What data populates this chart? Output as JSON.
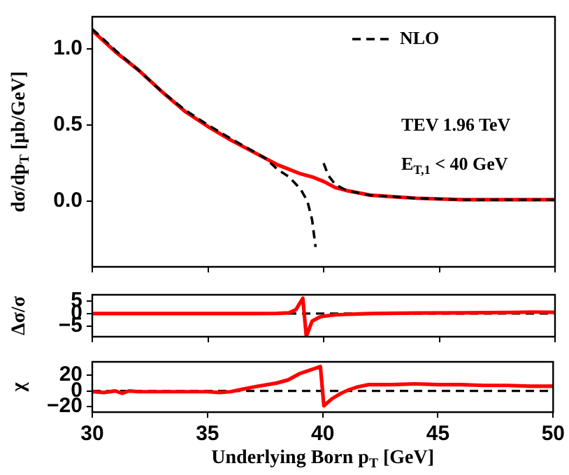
{
  "chart_data": [
    {
      "type": "line",
      "ylabel": "dσ/dp$_{T}$ [μb/GeV]",
      "xlim": [
        30,
        50
      ],
      "xticks": [
        30,
        35,
        40,
        45,
        50
      ],
      "ylim": [
        -0.43,
        1.21
      ],
      "yticks": [
        {
          "value": 0,
          "label": "0.0"
        },
        {
          "value": 0.5,
          "label": "0.5"
        },
        {
          "value": 1,
          "label": "1.0"
        }
      ],
      "tick_labels": "y",
      "grid": false,
      "legend": "top right",
      "annotations": [
        "TEV 1.96 TeV",
        "E$_{T,1}$ < 40 GeV"
      ],
      "series": [
        {
          "name": "NLO",
          "color": "#000000",
          "line_style": "dashed",
          "x": [
            30,
            31,
            32,
            33,
            34,
            35,
            36,
            36.7,
            37.5,
            38,
            38.5,
            39,
            39.3,
            39.5,
            39.65,
            39.7,
            39.9,
            40.0,
            40.2,
            40.5,
            41,
            42,
            43,
            44,
            46,
            50
          ],
          "values": [
            1.13,
            0.99,
            0.86,
            0.72,
            0.6,
            0.5,
            0.41,
            0.35,
            0.28,
            0.21,
            0.16,
            0.08,
            0.0,
            -0.12,
            -0.3,
            null,
            null,
            0.25,
            0.17,
            0.11,
            0.07,
            0.04,
            0.03,
            0.02,
            0.01,
            0.01
          ]
        },
        {
          "color": "#ff0000",
          "line_style": "solid",
          "x": [
            30,
            31,
            32,
            33,
            34,
            35,
            36,
            37,
            38,
            39,
            39.5,
            40,
            40.5,
            41,
            42,
            43,
            44,
            46,
            50
          ],
          "values": [
            1.12,
            0.98,
            0.86,
            0.72,
            0.59,
            0.49,
            0.4,
            0.32,
            0.24,
            0.18,
            0.16,
            0.13,
            0.09,
            0.07,
            0.04,
            0.03,
            0.02,
            0.01,
            0.01
          ]
        }
      ]
    },
    {
      "type": "line",
      "ylabel": "Δσ/σ",
      "xlim": [
        30,
        50
      ],
      "xticks": [
        30,
        35,
        40,
        45,
        50
      ],
      "ylim": [
        -9.1,
        7.4
      ],
      "yticks": [
        {
          "value": -5,
          "label": "−5"
        },
        0,
        5
      ],
      "tick_labels": "y",
      "grid": false,
      "ref_lines": [
        {
          "axis": "y",
          "value": 0,
          "color": "#000000",
          "line_style": "dashed"
        }
      ],
      "series": [
        {
          "color": "#ff0000",
          "line_style": "solid",
          "x": [
            30,
            32,
            34,
            36,
            37,
            38,
            38.5,
            38.8,
            39.1,
            39.25,
            39.5,
            39.8,
            40,
            40.5,
            41,
            42,
            44,
            46,
            48,
            49,
            50
          ],
          "values": [
            0,
            0,
            0,
            0,
            0,
            0.1,
            0.3,
            1.5,
            6,
            -9,
            -3,
            -1.5,
            -1,
            -0.5,
            -0.3,
            0,
            0.2,
            0.3,
            0.4,
            0.6,
            0.5
          ]
        }
      ]
    },
    {
      "type": "line",
      "ylabel": "χ",
      "xlabel": "Underlying Born p$_{T}$ [GeV]",
      "xlim": [
        30,
        50
      ],
      "xticks": [
        30,
        35,
        40,
        45,
        50
      ],
      "ylim": [
        -27,
        37
      ],
      "yticks": [
        {
          "value": -20,
          "label": "−20"
        },
        0,
        20
      ],
      "grid": false,
      "ref_lines": [
        {
          "axis": "y",
          "value": 0,
          "color": "#000000",
          "line_style": "dashed"
        }
      ],
      "series": [
        {
          "color": "#ff0000",
          "line_style": "solid",
          "x": [
            30,
            30.5,
            31,
            31.3,
            31.6,
            32,
            33,
            34,
            35,
            35.5,
            36,
            36.5,
            37,
            38,
            38.5,
            39,
            39.3,
            39.6,
            39.9,
            40.05,
            40.4,
            40.8,
            41.1,
            41.5,
            42,
            43,
            44,
            45,
            46,
            47,
            48,
            49,
            50
          ],
          "values": [
            -1,
            -2,
            0,
            -3,
            0,
            -1,
            -1,
            -1,
            -1,
            -2,
            -1,
            2,
            5,
            10,
            14,
            22,
            25,
            28,
            31,
            -19,
            -10,
            -3,
            1,
            5,
            8,
            8,
            9,
            8,
            8,
            7,
            7,
            6,
            6
          ]
        }
      ]
    }
  ]
}
